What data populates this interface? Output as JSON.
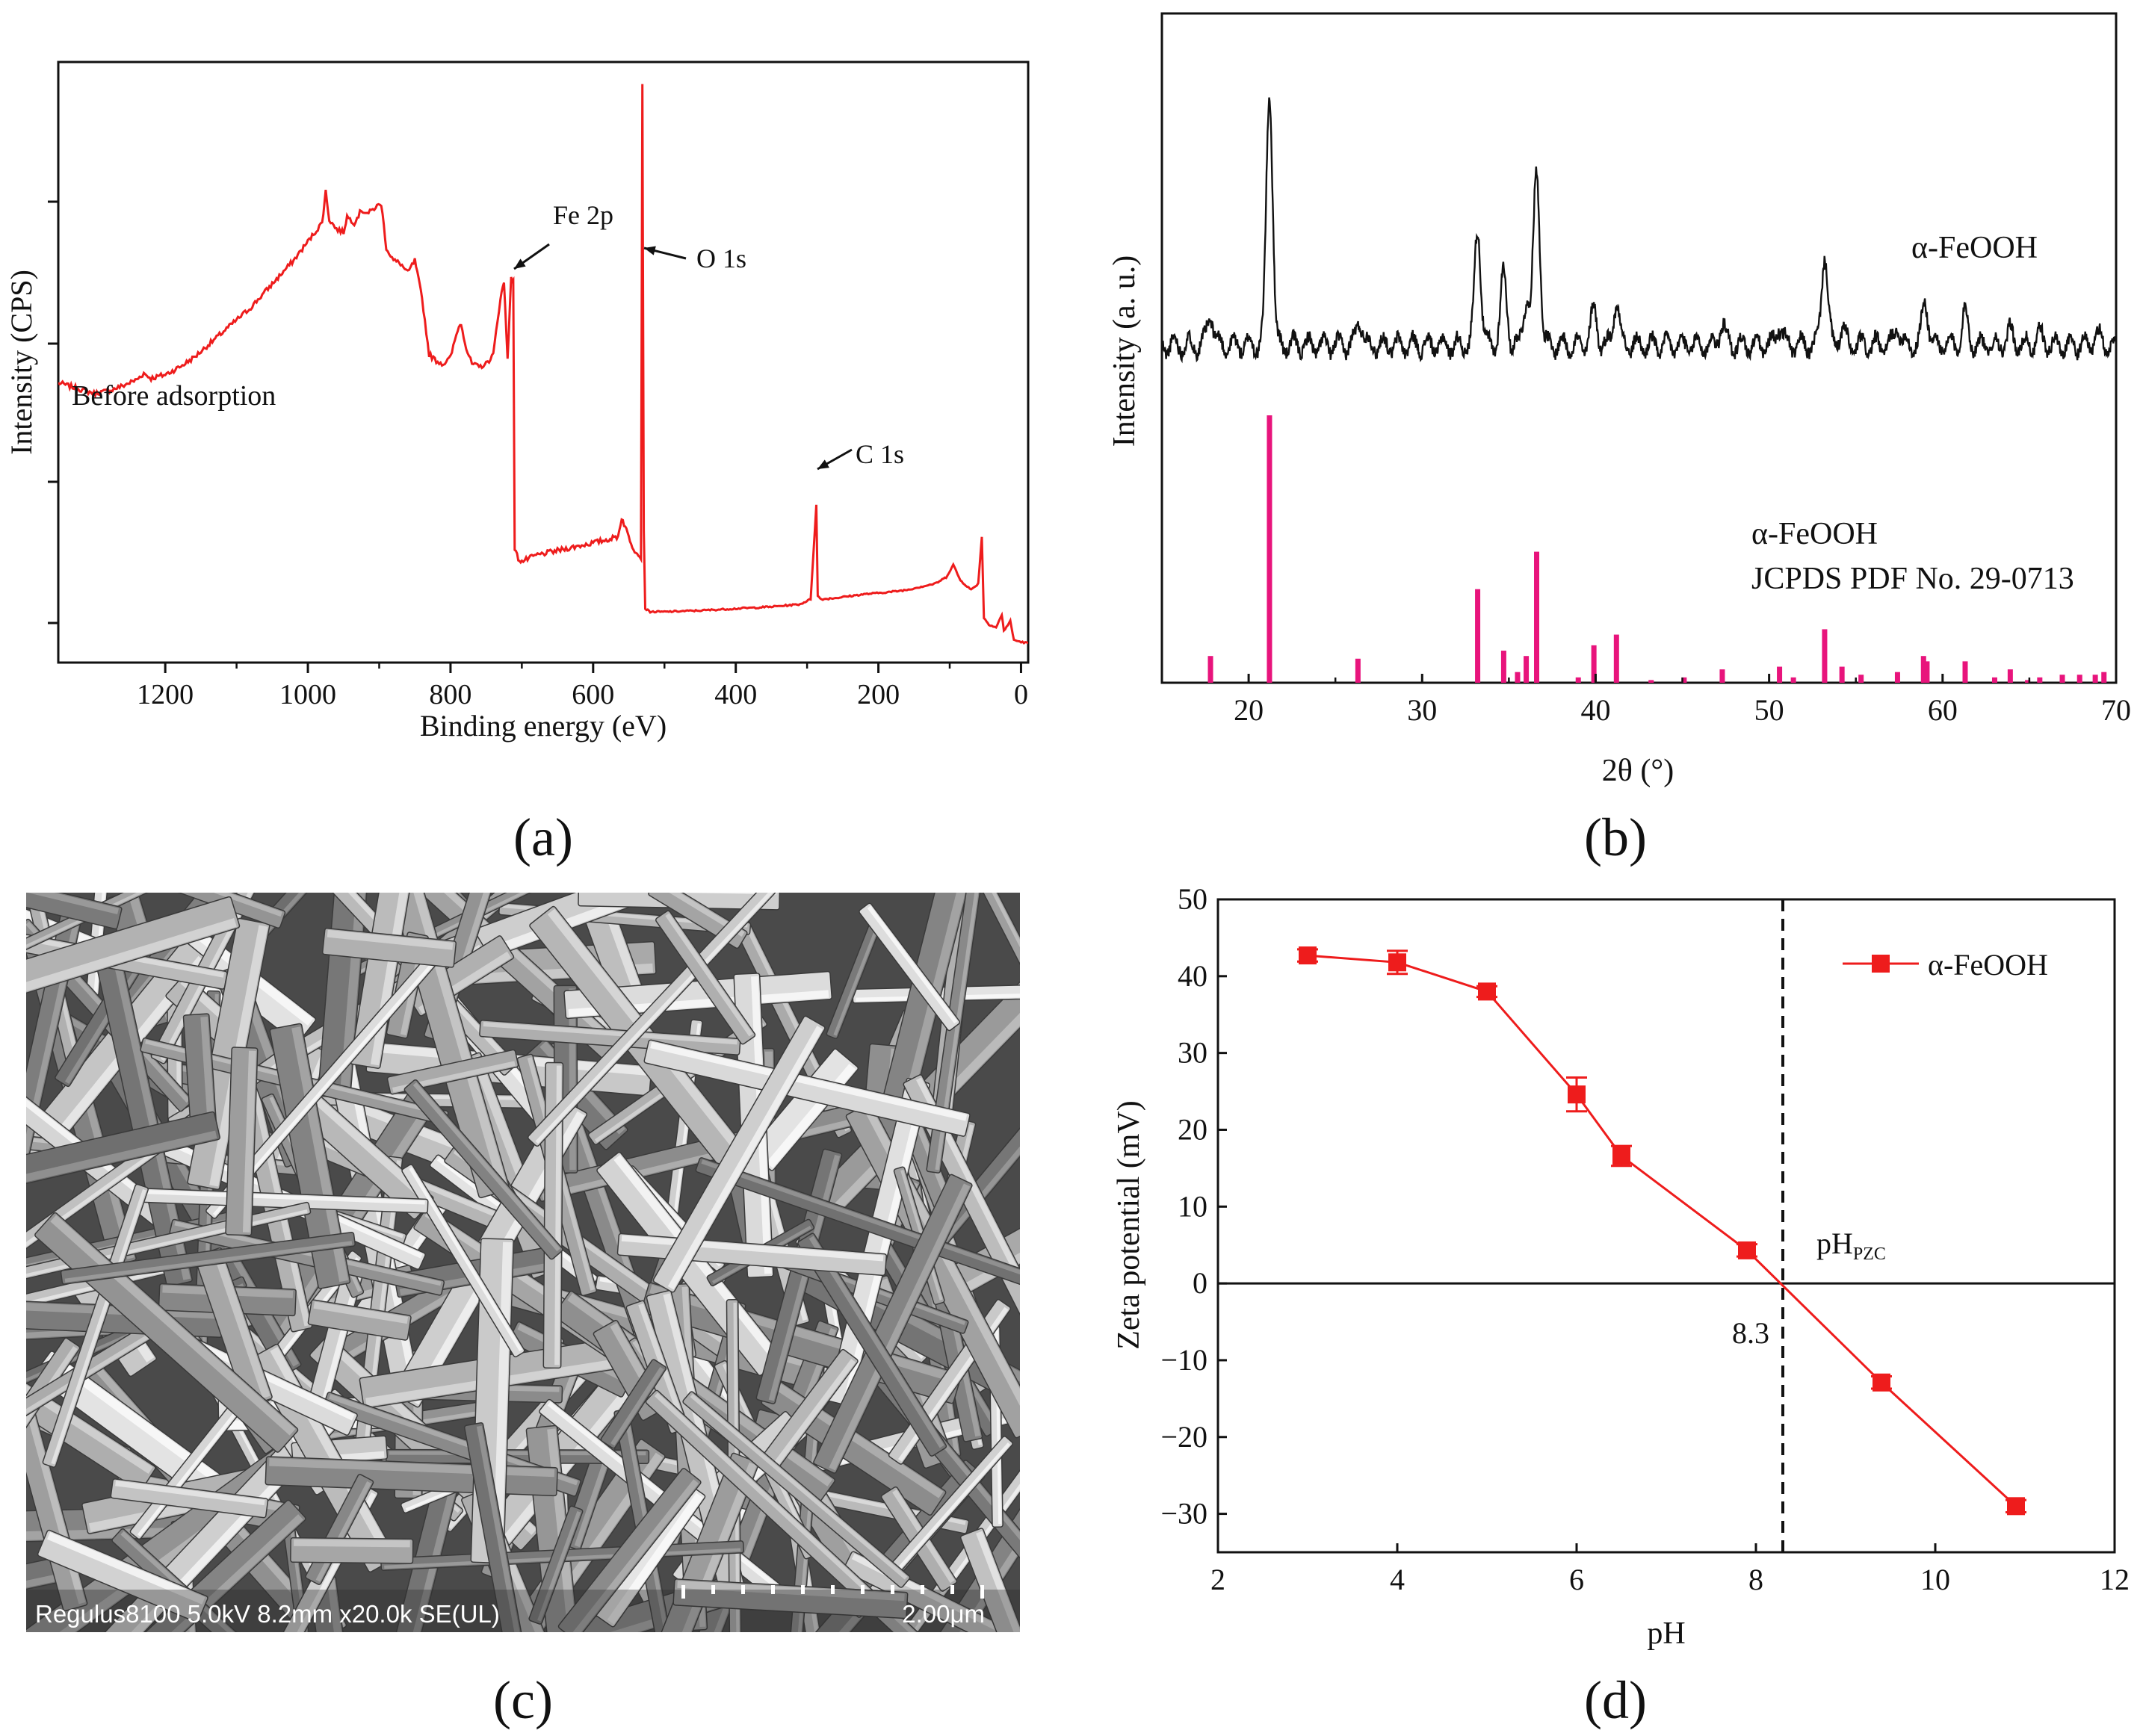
{
  "chart_data": [
    {
      "panel": "a",
      "type": "line",
      "xlabel": "Binding energy (eV)",
      "ylabel": "Intensity (CPS)",
      "xlim": [
        1350,
        -10
      ],
      "x_ticks": [
        1200,
        1000,
        800,
        600,
        400,
        200,
        0
      ],
      "sample_label": "Before adsorption",
      "series_color": "#ee1c1c",
      "series": [
        {
          "name": "Before adsorption",
          "points": [
            [
              1350,
              4.15
            ],
            [
              1320,
              4.05
            ],
            [
              1300,
              3.98
            ],
            [
              1280,
              4.02
            ],
            [
              1260,
              4.1
            ],
            [
              1240,
              4.2
            ],
            [
              1230,
              4.3
            ],
            [
              1220,
              4.22
            ],
            [
              1200,
              4.28
            ],
            [
              1180,
              4.4
            ],
            [
              1160,
              4.55
            ],
            [
              1140,
              4.75
            ],
            [
              1120,
              4.95
            ],
            [
              1100,
              5.15
            ],
            [
              1080,
              5.35
            ],
            [
              1060,
              5.6
            ],
            [
              1040,
              5.85
            ],
            [
              1020,
              6.1
            ],
            [
              1000,
              6.4
            ],
            [
              990,
              6.55
            ],
            [
              980,
              6.7
            ],
            [
              975,
              7.2
            ],
            [
              970,
              6.75
            ],
            [
              960,
              6.6
            ],
            [
              950,
              6.55
            ],
            [
              945,
              6.8
            ],
            [
              935,
              6.7
            ],
            [
              925,
              6.9
            ],
            [
              915,
              6.85
            ],
            [
              905,
              6.95
            ],
            [
              897,
              7.0
            ],
            [
              890,
              6.3
            ],
            [
              880,
              6.1
            ],
            [
              870,
              6.05
            ],
            [
              860,
              5.9
            ],
            [
              850,
              6.1
            ],
            [
              845,
              5.8
            ],
            [
              840,
              5.5
            ],
            [
              830,
              4.6
            ],
            [
              820,
              4.5
            ],
            [
              810,
              4.45
            ],
            [
              800,
              4.55
            ],
            [
              790,
              5.0
            ],
            [
              785,
              5.1
            ],
            [
              778,
              4.7
            ],
            [
              770,
              4.45
            ],
            [
              760,
              4.4
            ],
            [
              750,
              4.45
            ],
            [
              740,
              4.6
            ],
            [
              730,
              5.5
            ],
            [
              725,
              5.75
            ],
            [
              720,
              4.55
            ],
            [
              715,
              5.8
            ],
            [
              712,
              5.8
            ],
            [
              710,
              1.5
            ],
            [
              705,
              1.35
            ],
            [
              700,
              1.3
            ],
            [
              680,
              1.4
            ],
            [
              660,
              1.45
            ],
            [
              640,
              1.5
            ],
            [
              620,
              1.55
            ],
            [
              600,
              1.6
            ],
            [
              580,
              1.65
            ],
            [
              565,
              1.7
            ],
            [
              560,
              2.0
            ],
            [
              555,
              1.85
            ],
            [
              550,
              1.7
            ],
            [
              545,
              1.55
            ],
            [
              540,
              1.45
            ],
            [
              533,
              1.35
            ],
            [
              531,
              8.9
            ],
            [
              529,
              1.8
            ],
            [
              527,
              0.55
            ],
            [
              520,
              0.5
            ],
            [
              500,
              0.5
            ],
            [
              450,
              0.52
            ],
            [
              400,
              0.55
            ],
            [
              350,
              0.58
            ],
            [
              310,
              0.62
            ],
            [
              295,
              0.7
            ],
            [
              287,
              2.2
            ],
            [
              285,
              0.75
            ],
            [
              280,
              0.7
            ],
            [
              260,
              0.72
            ],
            [
              240,
              0.75
            ],
            [
              220,
              0.78
            ],
            [
              200,
              0.8
            ],
            [
              180,
              0.82
            ],
            [
              160,
              0.85
            ],
            [
              140,
              0.9
            ],
            [
              120,
              0.95
            ],
            [
              105,
              1.05
            ],
            [
              95,
              1.25
            ],
            [
              85,
              1.0
            ],
            [
              70,
              0.85
            ],
            [
              60,
              0.95
            ],
            [
              55,
              1.7
            ],
            [
              52,
              0.4
            ],
            [
              45,
              0.3
            ],
            [
              35,
              0.25
            ],
            [
              27,
              0.45
            ],
            [
              24,
              0.2
            ],
            [
              15,
              0.35
            ],
            [
              10,
              0.05
            ],
            [
              0,
              0.02
            ],
            [
              -10,
              0.0
            ]
          ]
        }
      ],
      "annotations": [
        {
          "text": "Fe 2p",
          "x": 712
        },
        {
          "text": "O 1s",
          "x": 531
        },
        {
          "text": "C 1s",
          "x": 285
        }
      ],
      "caption": "(a)"
    },
    {
      "panel": "b",
      "type": "line",
      "xlabel": "2θ (°)",
      "ylabel": "Intensity (a. u.)",
      "xlim": [
        15,
        70
      ],
      "x_ticks": [
        20,
        30,
        40,
        50,
        60,
        70
      ],
      "series": [
        {
          "name": "α-FeOOH",
          "color": "#111111",
          "peaks": [
            [
              17.8,
              0.12
            ],
            [
              21.2,
              1.0
            ],
            [
              26.4,
              0.1
            ],
            [
              33.2,
              0.46
            ],
            [
              34.7,
              0.28
            ],
            [
              36.0,
              0.18
            ],
            [
              36.6,
              0.7
            ],
            [
              39.9,
              0.14
            ],
            [
              41.2,
              0.17
            ],
            [
              47.3,
              0.08
            ],
            [
              50.6,
              0.08
            ],
            [
              53.2,
              0.36
            ],
            [
              54.2,
              0.06
            ],
            [
              57.4,
              0.07
            ],
            [
              59.0,
              0.17
            ],
            [
              61.3,
              0.12
            ],
            [
              63.9,
              0.05
            ],
            [
              65.6,
              0.04
            ],
            [
              68.9,
              0.04
            ]
          ]
        },
        {
          "name": "α-FeOOH JCPDS PDF No. 29-0713",
          "color": "#e8147c",
          "type": "stick",
          "sticks": [
            [
              17.8,
              10
            ],
            [
              21.2,
              100
            ],
            [
              26.3,
              9
            ],
            [
              33.2,
              35
            ],
            [
              34.7,
              12
            ],
            [
              35.5,
              4
            ],
            [
              36.0,
              10
            ],
            [
              36.6,
              49
            ],
            [
              39.0,
              2
            ],
            [
              39.9,
              14
            ],
            [
              41.2,
              18
            ],
            [
              43.2,
              1
            ],
            [
              45.1,
              2
            ],
            [
              47.3,
              5
            ],
            [
              50.6,
              6
            ],
            [
              51.4,
              2
            ],
            [
              53.2,
              20
            ],
            [
              54.2,
              6
            ],
            [
              55.3,
              3
            ],
            [
              57.4,
              4
            ],
            [
              58.9,
              10
            ],
            [
              59.1,
              8
            ],
            [
              61.3,
              8
            ],
            [
              63.0,
              2
            ],
            [
              63.9,
              5
            ],
            [
              64.9,
              1
            ],
            [
              65.6,
              2
            ],
            [
              66.9,
              3
            ],
            [
              67.9,
              3
            ],
            [
              68.8,
              3
            ],
            [
              69.3,
              4
            ]
          ]
        }
      ],
      "series_labels": [
        "α-FeOOH",
        "α-FeOOH",
        "JCPDS PDF No. 29-0713"
      ],
      "caption": "(b)"
    },
    {
      "panel": "d",
      "type": "line",
      "xlabel": "pH",
      "ylabel": "Zeta potential (mV)",
      "xlim": [
        2,
        12
      ],
      "ylim": [
        -35,
        50
      ],
      "x_ticks": [
        2,
        4,
        6,
        8,
        10,
        12
      ],
      "y_ticks": [
        -30,
        -20,
        -10,
        0,
        10,
        20,
        30,
        40,
        50
      ],
      "series": [
        {
          "name": "α-FeOOH",
          "color": "#ee1c1c",
          "x": [
            3,
            4,
            5,
            6,
            6.5,
            7.9,
            9.4,
            10.9
          ],
          "y": [
            42.7,
            41.8,
            38.0,
            24.6,
            16.6,
            4.3,
            -12.9,
            -29.0
          ],
          "err": [
            0.8,
            1.5,
            0.7,
            2.2,
            1.3,
            0.8,
            0.8,
            0.8
          ]
        }
      ],
      "pzc": 8.3,
      "pzc_label": "8.3",
      "pzc_text": "pH",
      "pzc_sub": "PZC",
      "legend": "top-right",
      "caption": "(d)"
    }
  ],
  "sem": {
    "info": "Regulus8100 5.0kV 8.2mm x20.0k SE(UL)",
    "scale": "2.00μm",
    "caption": "(c)"
  }
}
